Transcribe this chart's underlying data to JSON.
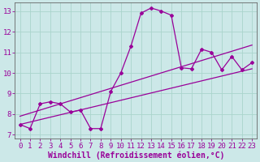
{
  "bg_color": "#cce8e8",
  "grid_color": "#aad4cc",
  "line_color": "#990099",
  "xlabel": "Windchill (Refroidissement éolien,°C)",
  "xlim": [
    -0.5,
    23.5
  ],
  "ylim": [
    6.8,
    13.4
  ],
  "xticks": [
    0,
    1,
    2,
    3,
    4,
    5,
    6,
    7,
    8,
    9,
    10,
    11,
    12,
    13,
    14,
    15,
    16,
    17,
    18,
    19,
    20,
    21,
    22,
    23
  ],
  "yticks": [
    7,
    8,
    9,
    10,
    11,
    12,
    13
  ],
  "main_x": [
    0,
    1,
    2,
    3,
    4,
    5,
    6,
    7,
    8,
    9,
    10,
    11,
    12,
    13,
    14,
    15,
    16,
    17,
    18,
    19,
    20,
    21,
    22,
    23
  ],
  "main_y": [
    7.5,
    7.3,
    8.5,
    8.6,
    8.5,
    8.1,
    8.2,
    7.3,
    7.3,
    9.1,
    10.0,
    11.3,
    12.9,
    13.15,
    13.0,
    12.8,
    10.25,
    10.2,
    11.15,
    11.0,
    10.15,
    10.8,
    10.15,
    10.5
  ],
  "smooth_x": [
    0,
    1,
    2,
    3,
    4,
    5,
    6,
    7,
    8,
    9,
    10,
    11,
    12,
    13,
    14,
    15,
    16,
    17,
    18,
    19,
    20,
    21,
    22,
    23
  ],
  "smooth_y": [
    7.9,
    8.05,
    8.2,
    8.35,
    8.5,
    8.65,
    8.8,
    8.95,
    9.1,
    9.25,
    9.4,
    9.55,
    9.7,
    9.85,
    10.0,
    10.15,
    10.3,
    10.45,
    10.6,
    10.75,
    10.9,
    11.05,
    11.2,
    11.35
  ],
  "line3_x": [
    0,
    23
  ],
  "line3_y": [
    7.5,
    10.2
  ],
  "tick_fontsize": 6.5,
  "label_fontsize": 7,
  "linewidth": 0.9,
  "marker_size": 2.0
}
